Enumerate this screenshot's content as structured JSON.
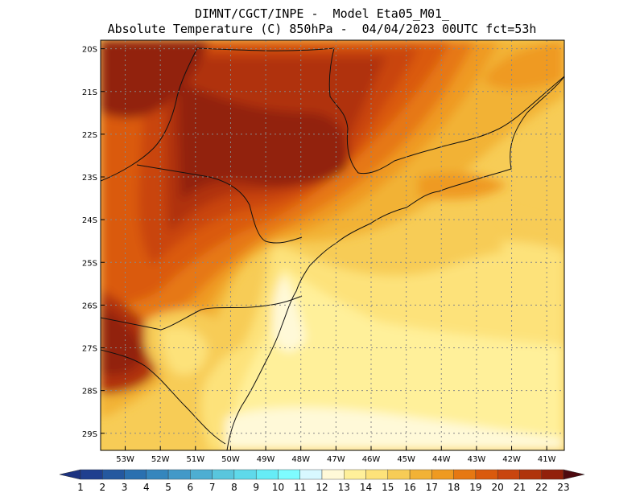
{
  "header": {
    "line1": "DIMNT/CGCT/INPE -  Model Eta05_M01_",
    "line2": "Absolute Temperature (C) 850hPa -  04/04/2023 00UTC fct=53h"
  },
  "map": {
    "lon_range": [
      -53.7,
      -40.5
    ],
    "lat_range": [
      -29.4,
      -19.8
    ],
    "lon_ticks": [
      -53,
      -52,
      -51,
      -50,
      -49,
      -48,
      -47,
      -46,
      -45,
      -44,
      -43,
      -42,
      -41
    ],
    "lat_ticks": [
      -20,
      -21,
      -22,
      -23,
      -24,
      -25,
      -26,
      -27,
      -28,
      -29
    ],
    "lon_labels": [
      "53W",
      "52W",
      "51W",
      "50W",
      "49W",
      "48W",
      "47W",
      "46W",
      "45W",
      "44W",
      "43W",
      "42W",
      "41W"
    ],
    "lat_labels": [
      "20S",
      "21S",
      "22S",
      "23S",
      "24S",
      "25S",
      "26S",
      "27S",
      "28S",
      "29S"
    ],
    "gridlines": "dotted"
  },
  "colorbar": {
    "labels": [
      "1",
      "2",
      "3",
      "4",
      "5",
      "6",
      "7",
      "8",
      "9",
      "10",
      "11",
      "12",
      "13",
      "14",
      "15",
      "16",
      "17",
      "18",
      "19",
      "20",
      "21",
      "22",
      "23"
    ],
    "colors": [
      "#1f3f8f",
      "#24589f",
      "#2a70b0",
      "#3586bd",
      "#4399c8",
      "#4eaed2",
      "#59c6dd",
      "#5fd9ea",
      "#66ecf6",
      "#7efcff",
      "#d8f8ff",
      "#fff9d8",
      "#fff09a",
      "#fde27a",
      "#f7cc56",
      "#f2b235",
      "#ef9a20",
      "#e67812",
      "#da5a0d",
      "#c9450e",
      "#b0330c",
      "#92200b",
      "#6e0f0a",
      "#5a0a0f"
    ],
    "end_left_color": "#1c3280",
    "end_right_color": "#4d0a10"
  }
}
